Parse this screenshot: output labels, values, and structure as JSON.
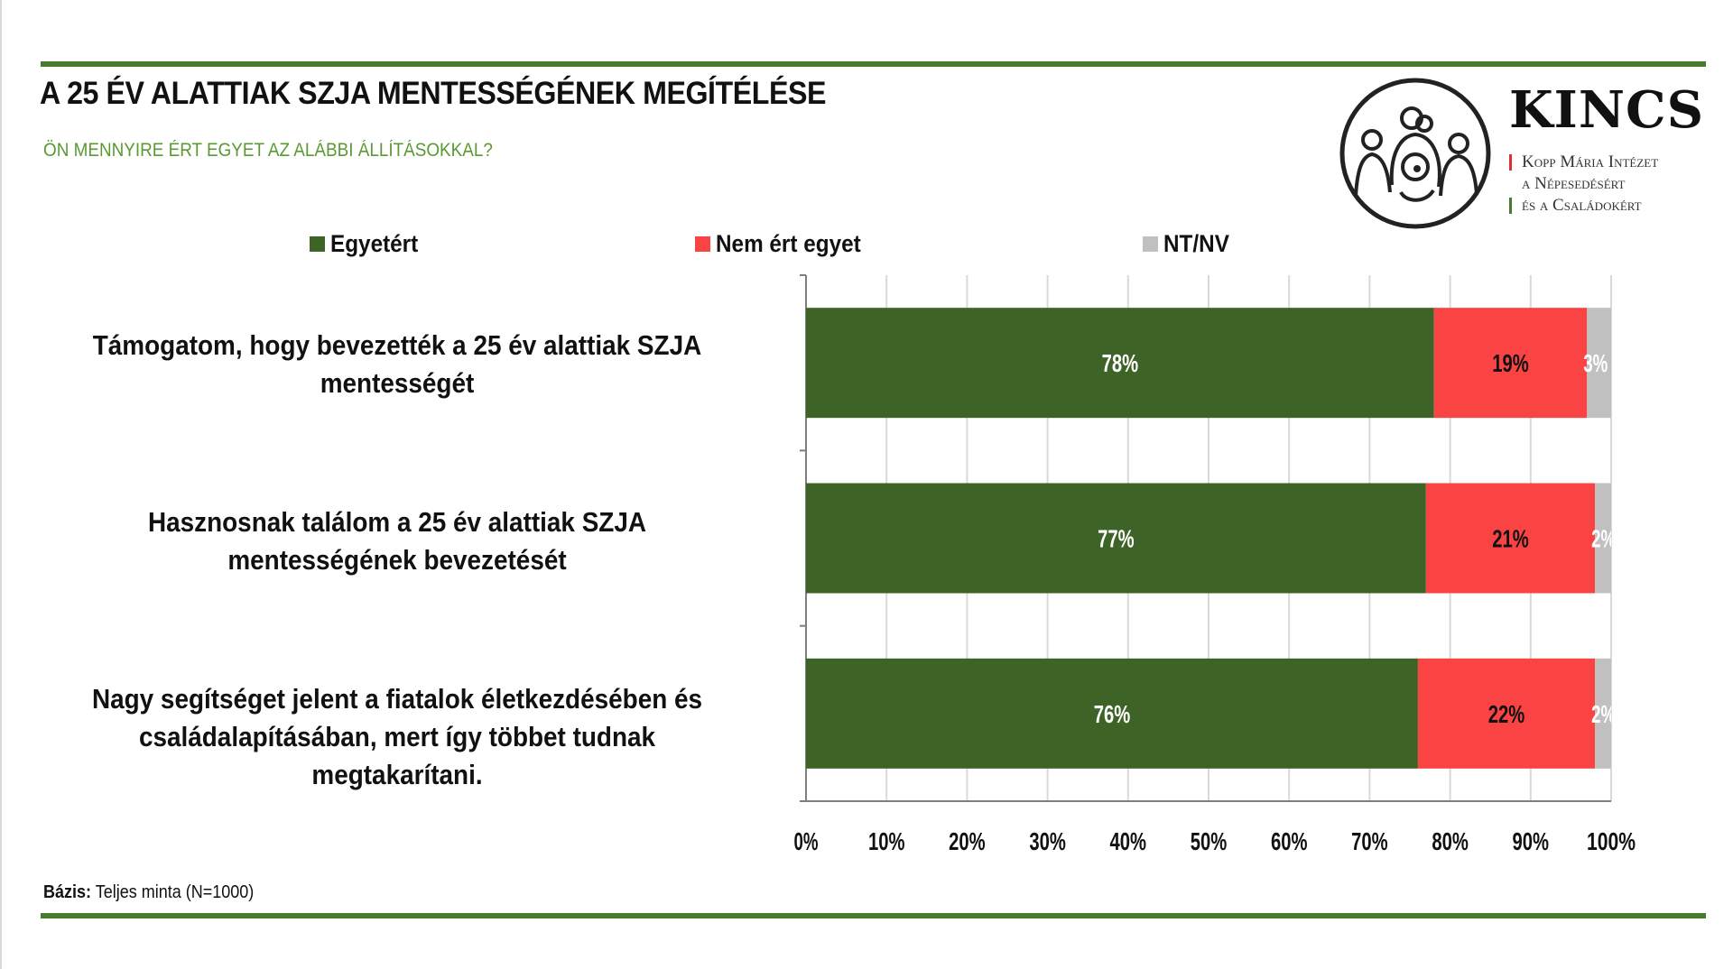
{
  "header": {
    "title": "A 25 ÉV ALATTIAK SZJA MENTESSÉGÉNEK MEGÍTÉLÉSE",
    "subtitle": "ÖN MENNYIRE ÉRT EGYET AZ ALÁBBI ÁLLÍTÁSOKKAL?"
  },
  "logo": {
    "name": "KINCS",
    "lines": [
      "Kopp Mária Intézet",
      "a Népesedésért",
      "és a Családokért"
    ]
  },
  "colors": {
    "rule": "#4a7a2e",
    "subtitle": "#5a9a32",
    "agree": "#3d6426",
    "disagree": "#fa4444",
    "dk": "#c0c0c0",
    "logo_red": "#e03030",
    "logo_green": "#4a7a2e"
  },
  "chart_data": {
    "type": "bar",
    "orientation": "horizontal",
    "stacked": true,
    "categories": [
      "Támogatom, hogy bevezették a 25 év alattiak SZJA mentességét",
      "Hasznosnak találom a 25 év alattiak SZJA mentességének bevezetését",
      "Nagy segítséget jelent a fiatalok életkezdésében és családalapításában, mert így többet tudnak megtakarítani."
    ],
    "series": [
      {
        "name": "Egyetért",
        "values": [
          78,
          77,
          76
        ],
        "labels": [
          "78%",
          "77%",
          "76%"
        ]
      },
      {
        "name": "Nem ért egyet",
        "values": [
          19,
          21,
          22
        ],
        "labels": [
          "19%",
          "21%",
          "22%"
        ]
      },
      {
        "name": "NT/NV",
        "values": [
          3,
          2,
          2
        ],
        "labels": [
          "3%",
          "2%",
          "2%"
        ]
      }
    ],
    "xlim": [
      0,
      100
    ],
    "xticks": [
      "0%",
      "10%",
      "20%",
      "30%",
      "40%",
      "50%",
      "60%",
      "70%",
      "80%",
      "90%",
      "100%"
    ],
    "grid": true,
    "legend": "top"
  },
  "footnote": {
    "label": "Bázis:",
    "text": "Teljes minta (N=1000)"
  }
}
